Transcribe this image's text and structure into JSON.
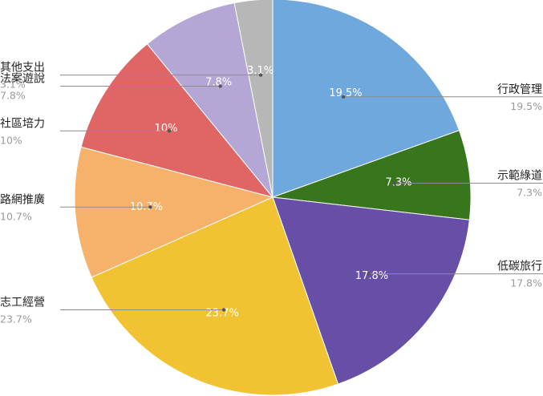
{
  "chart_data": {
    "type": "pie",
    "start_angle_deg": 0,
    "direction": "clockwise",
    "slices": [
      {
        "label": "行政管理",
        "value": 19.5,
        "pct_text": "19.5%",
        "color": "#6FA8DC"
      },
      {
        "label": "示範綠道",
        "value": 7.3,
        "pct_text": "7.3%",
        "color": "#38761D"
      },
      {
        "label": "低碳旅行",
        "value": 17.8,
        "pct_text": "17.8%",
        "color": "#674EA7"
      },
      {
        "label": "志工經營",
        "value": 23.7,
        "pct_text": "23.7%",
        "color": "#F1C232"
      },
      {
        "label": "路網推廣",
        "value": 10.7,
        "pct_text": "10.7%",
        "color": "#F6B26B"
      },
      {
        "label": "社區培力",
        "value": 10,
        "pct_text": "10%",
        "color": "#E06666"
      },
      {
        "label": "法案遊說",
        "value": 7.8,
        "pct_text": "7.8%",
        "color": "#B4A7D6"
      },
      {
        "label": "其他支出",
        "value": 3.1,
        "pct_text": "3.1%",
        "color": "#B7B7B7"
      }
    ],
    "legend": "outside labels with leader lines"
  }
}
